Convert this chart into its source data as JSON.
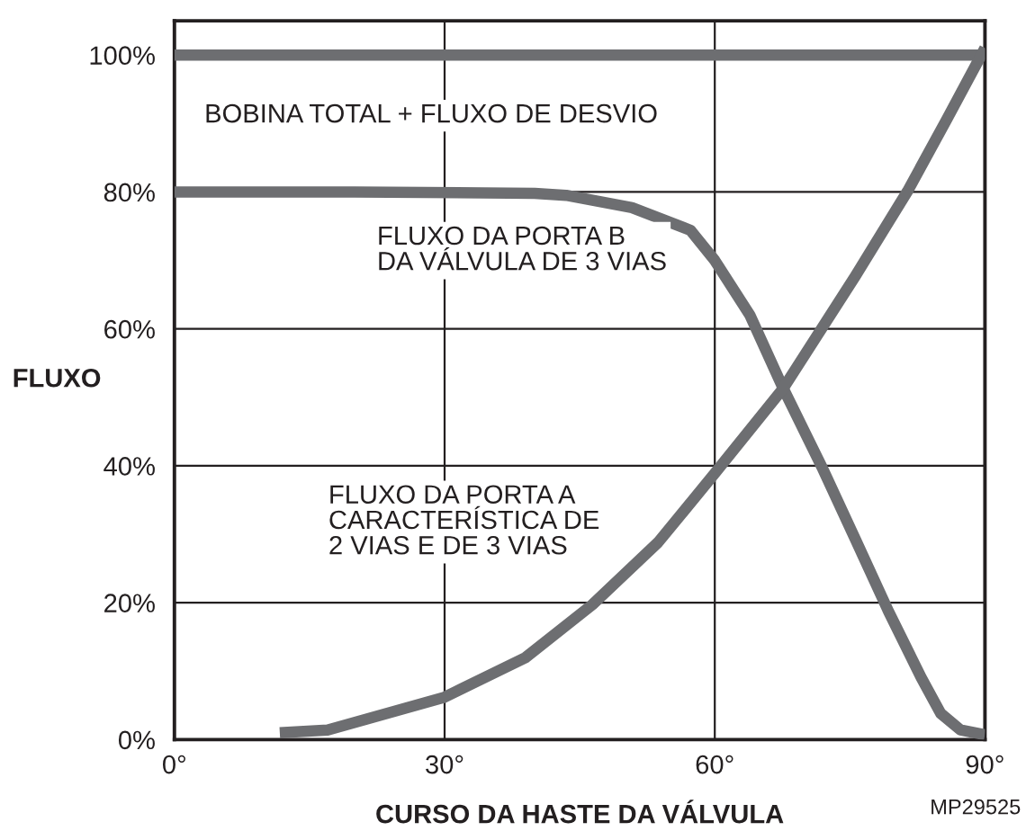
{
  "chart_data": {
    "type": "line",
    "xlabel": "CURSO DA HASTE DA VÁLVULA",
    "ylabel": "FLUXO",
    "annotations": [
      "MP29525"
    ],
    "series": [
      {
        "name": "BOBINA TOTAL + FLUXO DE DESVIO",
        "color": "#6d6e71",
        "x": [
          0,
          90
        ],
        "values": [
          100,
          100
        ]
      },
      {
        "name": "FLUXO DA PORTA B\nDA VÁLVULA DE 3 VIAS",
        "color": "#6d6e71",
        "x": [
          0,
          20,
          40,
          43.5,
          50.8,
          57.3,
          60,
          63.9,
          67.6,
          71.9,
          75.6,
          79.3,
          82.9,
          85.1,
          87.3,
          90
        ],
        "values": [
          80,
          80,
          79.8,
          79.5,
          77.7,
          74.4,
          70,
          62,
          51.3,
          39.8,
          29.3,
          18.7,
          9.1,
          3.8,
          1.4,
          0.7
        ]
      },
      {
        "name": "FLUXO DA PORTA A\nCARACTERÍSTICA DE\n2 VIAS E DE 3 VIAS",
        "color": "#6d6e71",
        "x": [
          11.7,
          17,
          30,
          39,
          46.4,
          53.7,
          60,
          67.6,
          75.6,
          81.4,
          85.8,
          90
        ],
        "values": [
          1,
          1.4,
          6.2,
          12,
          19.7,
          28.8,
          38.9,
          51.3,
          67.7,
          80.1,
          90.7,
          101
        ]
      }
    ],
    "xlim": [
      0,
      90
    ],
    "ylim": [
      0,
      105
    ],
    "xticks": [
      {
        "value": 0,
        "label": "0°"
      },
      {
        "value": 30,
        "label": "30°"
      },
      {
        "value": 60,
        "label": "60°"
      },
      {
        "value": 90,
        "label": "90°"
      }
    ],
    "yticks": [
      {
        "value": 0,
        "label": "0%"
      },
      {
        "value": 20,
        "label": "20%"
      },
      {
        "value": 40,
        "label": "40%"
      },
      {
        "value": 60,
        "label": "60%"
      },
      {
        "value": 80,
        "label": "80%"
      },
      {
        "value": 100,
        "label": "100%"
      }
    ],
    "grid": true,
    "legend": false,
    "marker": "none",
    "line_style": "solid"
  }
}
